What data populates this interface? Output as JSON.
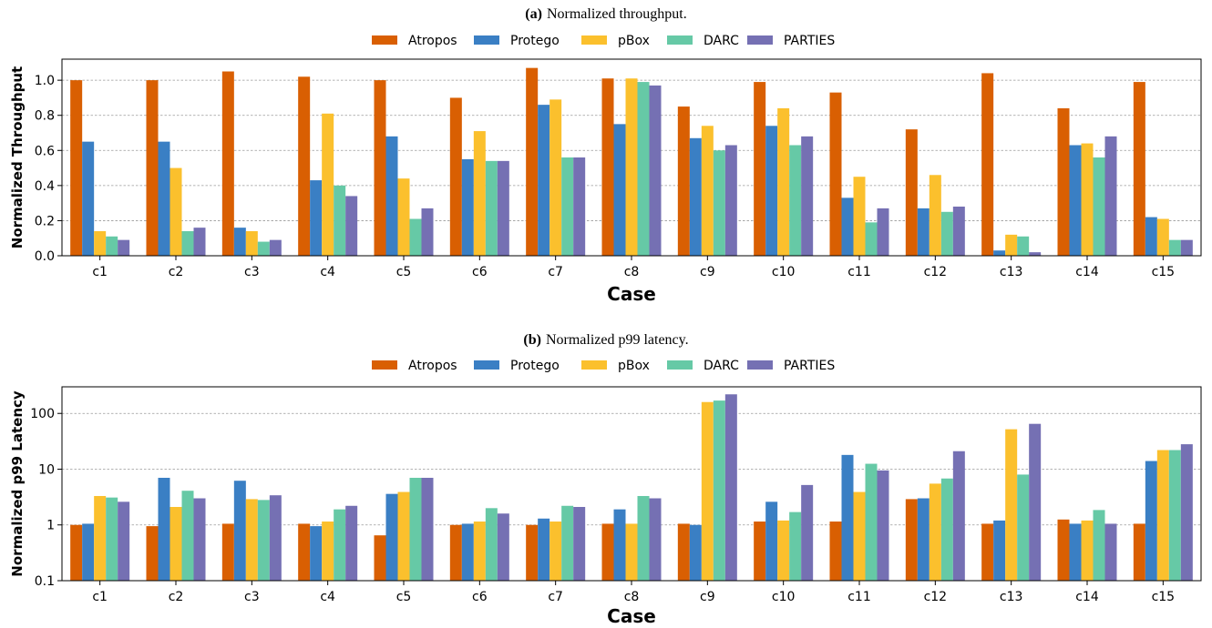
{
  "chart_data": [
    {
      "type": "bar",
      "title_tag": "(a)",
      "title": "Normalized throughput.",
      "xlabel": "Case",
      "ylabel": "Normalized Throughput",
      "ylim": [
        0,
        1.12
      ],
      "yscale": "linear",
      "yticks": [
        0.0,
        0.2,
        0.4,
        0.6,
        0.8,
        1.0
      ],
      "ytick_labels": [
        "0.0",
        "0.2",
        "0.4",
        "0.6",
        "0.8",
        "1.0"
      ],
      "grid": "horizontal dotted",
      "legend_position": "top-center",
      "categories": [
        "c1",
        "c2",
        "c3",
        "c4",
        "c5",
        "c6",
        "c7",
        "c8",
        "c9",
        "c10",
        "c11",
        "c12",
        "c13",
        "c14",
        "c15"
      ],
      "series": [
        {
          "name": "Atropos",
          "color": "#d95f02",
          "values": [
            1.0,
            1.0,
            1.05,
            1.02,
            1.0,
            0.9,
            1.07,
            1.01,
            0.85,
            0.99,
            0.93,
            0.72,
            1.04,
            0.84,
            0.99
          ]
        },
        {
          "name": "Protego",
          "color": "#3a7fc4",
          "values": [
            0.65,
            0.65,
            0.16,
            0.43,
            0.68,
            0.55,
            0.86,
            0.75,
            0.67,
            0.74,
            0.33,
            0.27,
            0.03,
            0.63,
            0.22
          ]
        },
        {
          "name": "pBox",
          "color": "#fbc02d",
          "values": [
            0.14,
            0.5,
            0.14,
            0.81,
            0.44,
            0.71,
            0.89,
            1.01,
            0.74,
            0.84,
            0.45,
            0.46,
            0.12,
            0.64,
            0.21
          ]
        },
        {
          "name": "DARC",
          "color": "#66c9a6",
          "values": [
            0.11,
            0.14,
            0.08,
            0.4,
            0.21,
            0.54,
            0.56,
            0.99,
            0.6,
            0.63,
            0.19,
            0.25,
            0.11,
            0.56,
            0.09
          ]
        },
        {
          "name": "PARTIES",
          "color": "#7570b3",
          "values": [
            0.09,
            0.16,
            0.09,
            0.34,
            0.27,
            0.54,
            0.56,
            0.97,
            0.63,
            0.68,
            0.27,
            0.28,
            0.02,
            0.68,
            0.09
          ]
        }
      ]
    },
    {
      "type": "bar",
      "title_tag": "(b)",
      "title": "Normalized p99 latency.",
      "xlabel": "Case",
      "ylabel": "Normalized p99 Latency",
      "ylim": [
        0.1,
        300
      ],
      "yscale": "log",
      "yticks": [
        0.1,
        1,
        10,
        100
      ],
      "ytick_labels": [
        "0.1",
        "1",
        "10",
        "100"
      ],
      "grid": "horizontal dotted",
      "legend_position": "top-center",
      "categories": [
        "c1",
        "c2",
        "c3",
        "c4",
        "c5",
        "c6",
        "c7",
        "c8",
        "c9",
        "c10",
        "c11",
        "c12",
        "c13",
        "c14",
        "c15"
      ],
      "series": [
        {
          "name": "Atropos",
          "color": "#d95f02",
          "values": [
            1.0,
            0.95,
            1.05,
            1.05,
            0.65,
            1.0,
            1.0,
            1.05,
            1.05,
            1.15,
            1.15,
            2.9,
            1.05,
            1.25,
            1.05
          ]
        },
        {
          "name": "Protego",
          "color": "#3a7fc4",
          "values": [
            1.05,
            7.0,
            6.2,
            0.95,
            3.6,
            1.05,
            1.3,
            1.9,
            1.0,
            2.6,
            18.0,
            3.0,
            1.2,
            1.05,
            14.0
          ]
        },
        {
          "name": "pBox",
          "color": "#fbc02d",
          "values": [
            3.3,
            2.1,
            2.9,
            1.15,
            3.9,
            1.15,
            1.15,
            1.05,
            160,
            1.2,
            3.9,
            5.5,
            52,
            1.2,
            22
          ]
        },
        {
          "name": "DARC",
          "color": "#66c9a6",
          "values": [
            3.1,
            4.1,
            2.8,
            1.9,
            7.0,
            2.0,
            2.2,
            3.3,
            170,
            1.7,
            12.5,
            6.8,
            8.0,
            1.85,
            22
          ]
        },
        {
          "name": "PARTIES",
          "color": "#7570b3",
          "values": [
            2.6,
            3.0,
            3.4,
            2.2,
            7.0,
            1.6,
            2.1,
            3.0,
            220,
            5.2,
            9.5,
            21,
            65,
            1.05,
            28
          ]
        }
      ]
    }
  ]
}
